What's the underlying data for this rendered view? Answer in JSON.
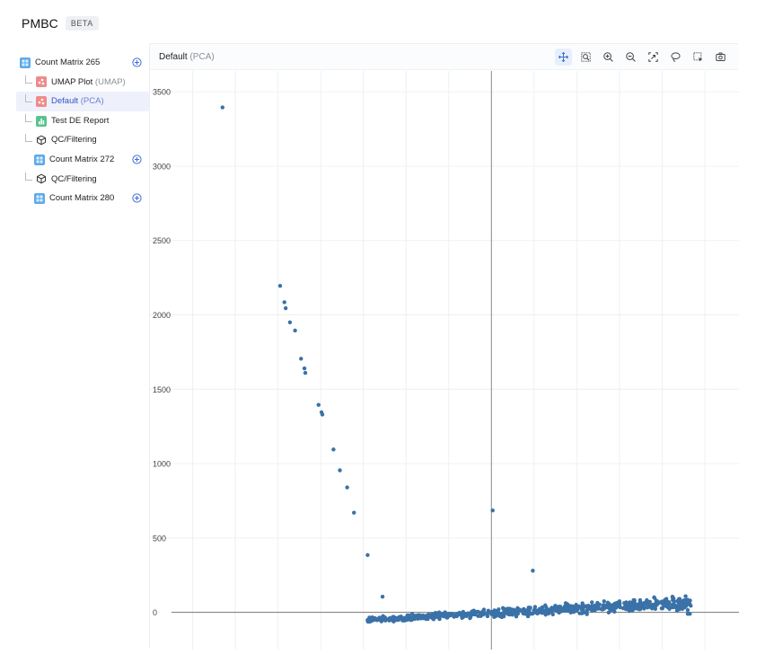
{
  "app": {
    "title": "PMBC",
    "badge": "BETA"
  },
  "sidebar": {
    "items": [
      {
        "label": "Count Matrix 265",
        "sub": "",
        "icon": "matrix-icon",
        "indent": 0,
        "branch": false,
        "add": true,
        "selected": false
      },
      {
        "label": "UMAP Plot",
        "sub": "(UMAP)",
        "icon": "umap-plot-icon",
        "indent": 1,
        "branch": true,
        "add": false,
        "selected": false
      },
      {
        "label": "Default",
        "sub": "(PCA)",
        "icon": "pca-plot-icon",
        "indent": 1,
        "branch": true,
        "add": false,
        "selected": true
      },
      {
        "label": "Test DE Report",
        "sub": "",
        "icon": "report-icon",
        "indent": 1,
        "branch": true,
        "add": false,
        "selected": false
      },
      {
        "label": "QC/Filtering",
        "sub": "",
        "icon": "cube-icon",
        "indent": 1,
        "branch": true,
        "add": false,
        "selected": false
      },
      {
        "label": "Count Matrix 272",
        "sub": "",
        "icon": "matrix-icon",
        "indent": 2,
        "branch": false,
        "add": true,
        "selected": false
      },
      {
        "label": "QC/Filtering",
        "sub": "",
        "icon": "cube-icon",
        "indent": 1,
        "branch": true,
        "add": false,
        "selected": false
      },
      {
        "label": "Count Matrix 280",
        "sub": "",
        "icon": "matrix-icon",
        "indent": 2,
        "branch": false,
        "add": true,
        "selected": false
      }
    ]
  },
  "panel": {
    "title": "Default",
    "title_sub": "(PCA)",
    "toolbar": [
      {
        "name": "pan-icon",
        "active": true
      },
      {
        "name": "box-zoom-icon",
        "active": false
      },
      {
        "name": "zoom-in-icon",
        "active": false
      },
      {
        "name": "zoom-out-icon",
        "active": false
      },
      {
        "name": "autoscale-icon",
        "active": false
      },
      {
        "name": "lasso-select-icon",
        "active": false
      },
      {
        "name": "box-select-icon",
        "active": false
      },
      {
        "name": "camera-icon",
        "active": false
      }
    ]
  },
  "chart_data": {
    "type": "scatter",
    "title": "",
    "xlabel": "",
    "ylabel": "",
    "yticks": [
      0,
      500,
      1000,
      1500,
      2000,
      2500,
      3000,
      3500
    ],
    "ylim": [
      -250,
      3640
    ],
    "xlim": [
      -800,
      580
    ],
    "grid": true,
    "color": "#3a72a8",
    "outliers": {
      "x": [
        -630,
        -495,
        -485,
        -482,
        -472,
        -460,
        -446,
        -438,
        -436,
        -405,
        -398,
        -396,
        -370,
        -355,
        -338,
        -322,
        -290,
        -255,
        3,
        97
      ],
      "y": [
        3395,
        2195,
        2085,
        2045,
        1950,
        1895,
        1705,
        1640,
        1610,
        1395,
        1345,
        1330,
        1095,
        955,
        840,
        670,
        385,
        105,
        685,
        280
      ]
    },
    "cluster": {
      "x_range": [
        -290,
        470
      ],
      "y_start": -50,
      "y_end": 65,
      "spread": 45,
      "count": 700,
      "extra_x": [
        410,
        425,
        440,
        460,
        465,
        460
      ],
      "extra_y": [
        90,
        95,
        20,
        15,
        -10,
        -10
      ]
    }
  }
}
